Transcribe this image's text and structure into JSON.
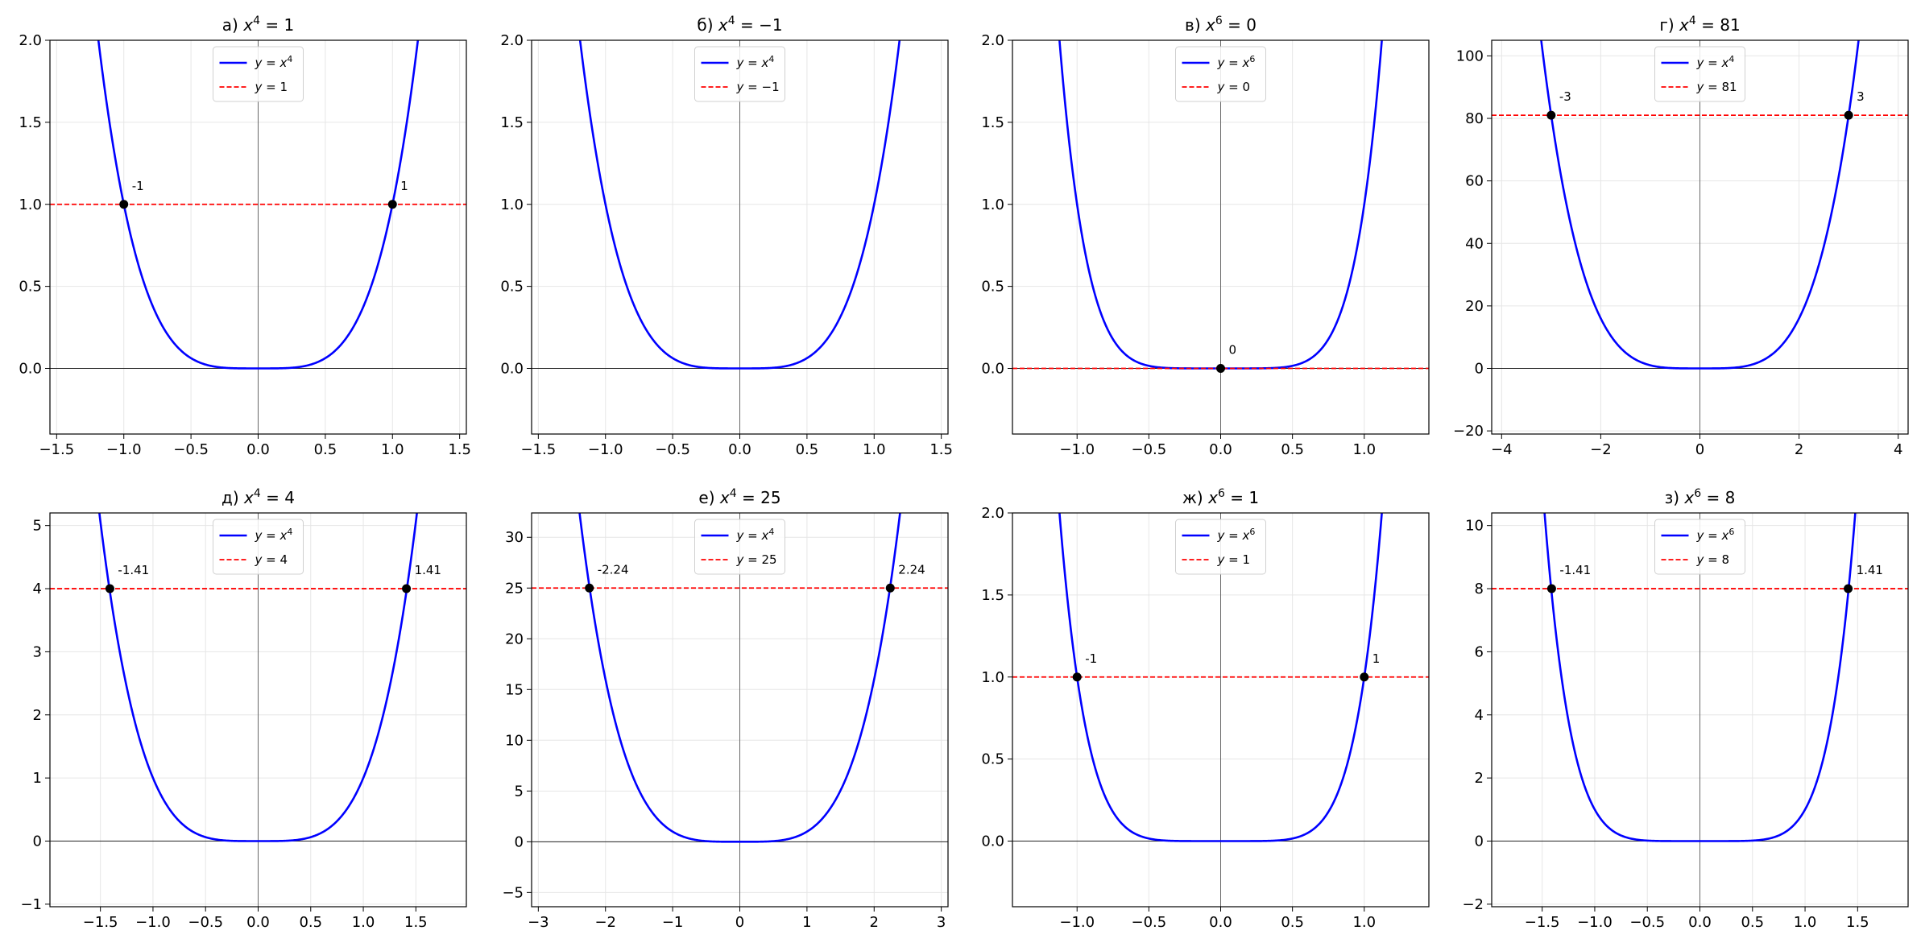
{
  "chart_data": [
    {
      "type": "line",
      "title": "а) x⁴ = 1",
      "title_prefix": "а)",
      "equation": {
        "base": "x",
        "exp": "4",
        "rhs": "1"
      },
      "xlim": [
        -1.55,
        1.55
      ],
      "ylim": [
        -0.4,
        2.0
      ],
      "xticks": [
        -1.5,
        -1.0,
        -0.5,
        0.0,
        0.5,
        1.0,
        1.5
      ],
      "xtick_labels": [
        "−1.5",
        "−1.0",
        "−0.5",
        "0.0",
        "0.5",
        "1.0",
        "1.5"
      ],
      "yticks": [
        0.0,
        0.5,
        1.0,
        1.5,
        2.0
      ],
      "ytick_labels": [
        "0.0",
        "0.5",
        "1.0",
        "1.5",
        "2.0"
      ],
      "power": 4,
      "c": 1,
      "series": [
        {
          "name": "y = x⁴",
          "legend": {
            "lhs": "y",
            "base": "x",
            "exp": "4"
          },
          "style": "solid",
          "color": "#0000ff"
        },
        {
          "name": "y = 1",
          "legend": {
            "lhs": "y",
            "rhs": "1"
          },
          "style": "dashed",
          "color": "#ff0000"
        }
      ],
      "roots": [
        {
          "x": -1.0,
          "y": 1,
          "label": "-1"
        },
        {
          "x": 1.0,
          "y": 1,
          "label": "1"
        }
      ],
      "grid": true,
      "legend_position": "upper-center"
    },
    {
      "type": "line",
      "title": "б) x⁴ = −1",
      "title_prefix": "б)",
      "equation": {
        "base": "x",
        "exp": "4",
        "rhs": "−1"
      },
      "xlim": [
        -1.55,
        1.55
      ],
      "ylim": [
        -0.4,
        2.0
      ],
      "xticks": [
        -1.5,
        -1.0,
        -0.5,
        0.0,
        0.5,
        1.0,
        1.5
      ],
      "xtick_labels": [
        "−1.5",
        "−1.0",
        "−0.5",
        "0.0",
        "0.5",
        "1.0",
        "1.5"
      ],
      "yticks": [
        0.0,
        0.5,
        1.0,
        1.5,
        2.0
      ],
      "ytick_labels": [
        "0.0",
        "0.5",
        "1.0",
        "1.5",
        "2.0"
      ],
      "power": 4,
      "c": -1,
      "series": [
        {
          "name": "y = x⁴",
          "legend": {
            "lhs": "y",
            "base": "x",
            "exp": "4"
          },
          "style": "solid",
          "color": "#0000ff"
        },
        {
          "name": "y = −1",
          "legend": {
            "lhs": "y",
            "rhs": "−1"
          },
          "style": "dashed",
          "color": "#ff0000"
        }
      ],
      "roots": [],
      "grid": true,
      "legend_position": "upper-center"
    },
    {
      "type": "line",
      "title": "в) x⁶ = 0",
      "title_prefix": "в)",
      "equation": {
        "base": "x",
        "exp": "6",
        "rhs": "0"
      },
      "xlim": [
        -1.45,
        1.45
      ],
      "ylim": [
        -0.4,
        2.0
      ],
      "xticks": [
        -1.0,
        -0.5,
        0.0,
        0.5,
        1.0
      ],
      "xtick_labels": [
        "−1.0",
        "−0.5",
        "0.0",
        "0.5",
        "1.0"
      ],
      "yticks": [
        0.0,
        0.5,
        1.0,
        1.5,
        2.0
      ],
      "ytick_labels": [
        "0.0",
        "0.5",
        "1.0",
        "1.5",
        "2.0"
      ],
      "power": 6,
      "c": 0,
      "series": [
        {
          "name": "y = x⁶",
          "legend": {
            "lhs": "y",
            "base": "x",
            "exp": "6"
          },
          "style": "solid",
          "color": "#0000ff"
        },
        {
          "name": "y = 0",
          "legend": {
            "lhs": "y",
            "rhs": "0"
          },
          "style": "dashed",
          "color": "#ff0000"
        }
      ],
      "roots": [
        {
          "x": 0.0,
          "y": 0,
          "label": "0"
        }
      ],
      "grid": true,
      "legend_position": "upper-center"
    },
    {
      "type": "line",
      "title": "г) x⁴ = 81",
      "title_prefix": "г)",
      "equation": {
        "base": "x",
        "exp": "4",
        "rhs": "81"
      },
      "xlim": [
        -4.2,
        4.2
      ],
      "ylim": [
        -21,
        105
      ],
      "xticks": [
        -4,
        -2,
        0,
        2,
        4
      ],
      "xtick_labels": [
        "−4",
        "−2",
        "0",
        "2",
        "4"
      ],
      "yticks": [
        -20,
        0,
        20,
        40,
        60,
        80,
        100
      ],
      "ytick_labels": [
        "−20",
        "0",
        "20",
        "40",
        "60",
        "80",
        "100"
      ],
      "power": 4,
      "c": 81,
      "series": [
        {
          "name": "y = x⁴",
          "legend": {
            "lhs": "y",
            "base": "x",
            "exp": "4"
          },
          "style": "solid",
          "color": "#0000ff"
        },
        {
          "name": "y = 81",
          "legend": {
            "lhs": "y",
            "rhs": "81"
          },
          "style": "dashed",
          "color": "#ff0000"
        }
      ],
      "roots": [
        {
          "x": -3.0,
          "y": 81,
          "label": "-3"
        },
        {
          "x": 3.0,
          "y": 81,
          "label": "3"
        }
      ],
      "grid": true,
      "legend_position": "upper-center"
    },
    {
      "type": "line",
      "title": "д) x⁴ = 4",
      "title_prefix": "д)",
      "equation": {
        "base": "x",
        "exp": "4",
        "rhs": "4"
      },
      "xlim": [
        -1.98,
        1.98
      ],
      "ylim": [
        -1.04,
        5.2
      ],
      "xticks": [
        -1.5,
        -1.0,
        -0.5,
        0.0,
        0.5,
        1.0,
        1.5
      ],
      "xtick_labels": [
        "−1.5",
        "−1.0",
        "−0.5",
        "0.0",
        "0.5",
        "1.0",
        "1.5"
      ],
      "yticks": [
        -1,
        0,
        1,
        2,
        3,
        4,
        5
      ],
      "ytick_labels": [
        "−1",
        "0",
        "1",
        "2",
        "3",
        "4",
        "5"
      ],
      "power": 4,
      "c": 4,
      "series": [
        {
          "name": "y = x⁴",
          "legend": {
            "lhs": "y",
            "base": "x",
            "exp": "4"
          },
          "style": "solid",
          "color": "#0000ff"
        },
        {
          "name": "y = 4",
          "legend": {
            "lhs": "y",
            "rhs": "4"
          },
          "style": "dashed",
          "color": "#ff0000"
        }
      ],
      "roots": [
        {
          "x": -1.41,
          "y": 4,
          "label": "-1.41"
        },
        {
          "x": 1.41,
          "y": 4,
          "label": "1.41"
        }
      ],
      "grid": true,
      "legend_position": "upper-center"
    },
    {
      "type": "line",
      "title": "е) x⁴ = 25",
      "title_prefix": "е)",
      "equation": {
        "base": "x",
        "exp": "4",
        "rhs": "25"
      },
      "xlim": [
        -3.1,
        3.1
      ],
      "ylim": [
        -6.4,
        32.4
      ],
      "xticks": [
        -3,
        -2,
        -1,
        0,
        1,
        2,
        3
      ],
      "xtick_labels": [
        "−3",
        "−2",
        "−1",
        "0",
        "1",
        "2",
        "3"
      ],
      "yticks": [
        -5,
        0,
        5,
        10,
        15,
        20,
        25,
        30
      ],
      "ytick_labels": [
        "−5",
        "0",
        "5",
        "10",
        "15",
        "20",
        "25",
        "30"
      ],
      "power": 4,
      "c": 25,
      "series": [
        {
          "name": "y = x⁴",
          "legend": {
            "lhs": "y",
            "base": "x",
            "exp": "4"
          },
          "style": "solid",
          "color": "#0000ff"
        },
        {
          "name": "y = 25",
          "legend": {
            "lhs": "y",
            "rhs": "25"
          },
          "style": "dashed",
          "color": "#ff0000"
        }
      ],
      "roots": [
        {
          "x": -2.24,
          "y": 25,
          "label": "-2.24"
        },
        {
          "x": 2.24,
          "y": 25,
          "label": "2.24"
        }
      ],
      "grid": true,
      "legend_position": "upper-center"
    },
    {
      "type": "line",
      "title": "ж) x⁶ = 1",
      "title_prefix": "ж)",
      "equation": {
        "base": "x",
        "exp": "6",
        "rhs": "1"
      },
      "xlim": [
        -1.45,
        1.45
      ],
      "ylim": [
        -0.4,
        2.0
      ],
      "xticks": [
        -1.0,
        -0.5,
        0.0,
        0.5,
        1.0
      ],
      "xtick_labels": [
        "−1.0",
        "−0.5",
        "0.0",
        "0.5",
        "1.0"
      ],
      "yticks": [
        0.0,
        0.5,
        1.0,
        1.5,
        2.0
      ],
      "ytick_labels": [
        "0.0",
        "0.5",
        "1.0",
        "1.5",
        "2.0"
      ],
      "power": 6,
      "c": 1,
      "series": [
        {
          "name": "y = x⁶",
          "legend": {
            "lhs": "y",
            "base": "x",
            "exp": "6"
          },
          "style": "solid",
          "color": "#0000ff"
        },
        {
          "name": "y = 1",
          "legend": {
            "lhs": "y",
            "rhs": "1"
          },
          "style": "dashed",
          "color": "#ff0000"
        }
      ],
      "roots": [
        {
          "x": -1.0,
          "y": 1,
          "label": "-1"
        },
        {
          "x": 1.0,
          "y": 1,
          "label": "1"
        }
      ],
      "grid": true,
      "legend_position": "upper-center"
    },
    {
      "type": "line",
      "title": "з) x⁶ = 8",
      "title_prefix": "з)",
      "equation": {
        "base": "x",
        "exp": "6",
        "rhs": "8"
      },
      "xlim": [
        -1.98,
        1.98
      ],
      "ylim": [
        -2.08,
        10.4
      ],
      "xticks": [
        -1.5,
        -1.0,
        -0.5,
        0.0,
        0.5,
        1.0,
        1.5
      ],
      "xtick_labels": [
        "−1.5",
        "−1.0",
        "−0.5",
        "0.0",
        "0.5",
        "1.0",
        "1.5"
      ],
      "yticks": [
        -2,
        0,
        2,
        4,
        6,
        8,
        10
      ],
      "ytick_labels": [
        "−2",
        "0",
        "2",
        "4",
        "6",
        "8",
        "10"
      ],
      "power": 6,
      "c": 8,
      "series": [
        {
          "name": "y = x⁶",
          "legend": {
            "lhs": "y",
            "base": "x",
            "exp": "6"
          },
          "style": "solid",
          "color": "#0000ff"
        },
        {
          "name": "y = 8",
          "legend": {
            "lhs": "y",
            "rhs": "8"
          },
          "style": "dashed",
          "color": "#ff0000"
        }
      ],
      "roots": [
        {
          "x": -1.41,
          "y": 8,
          "label": "-1.41"
        },
        {
          "x": 1.41,
          "y": 8,
          "label": "1.41"
        }
      ],
      "grid": true,
      "legend_position": "upper-center"
    }
  ],
  "colors": {
    "curve": "#0000ff",
    "hline": "#ff0000",
    "root_marker": "#000000",
    "grid": "#e6e6e6",
    "axis_zero": "#000000",
    "legend_border": "#d0d0d0"
  }
}
